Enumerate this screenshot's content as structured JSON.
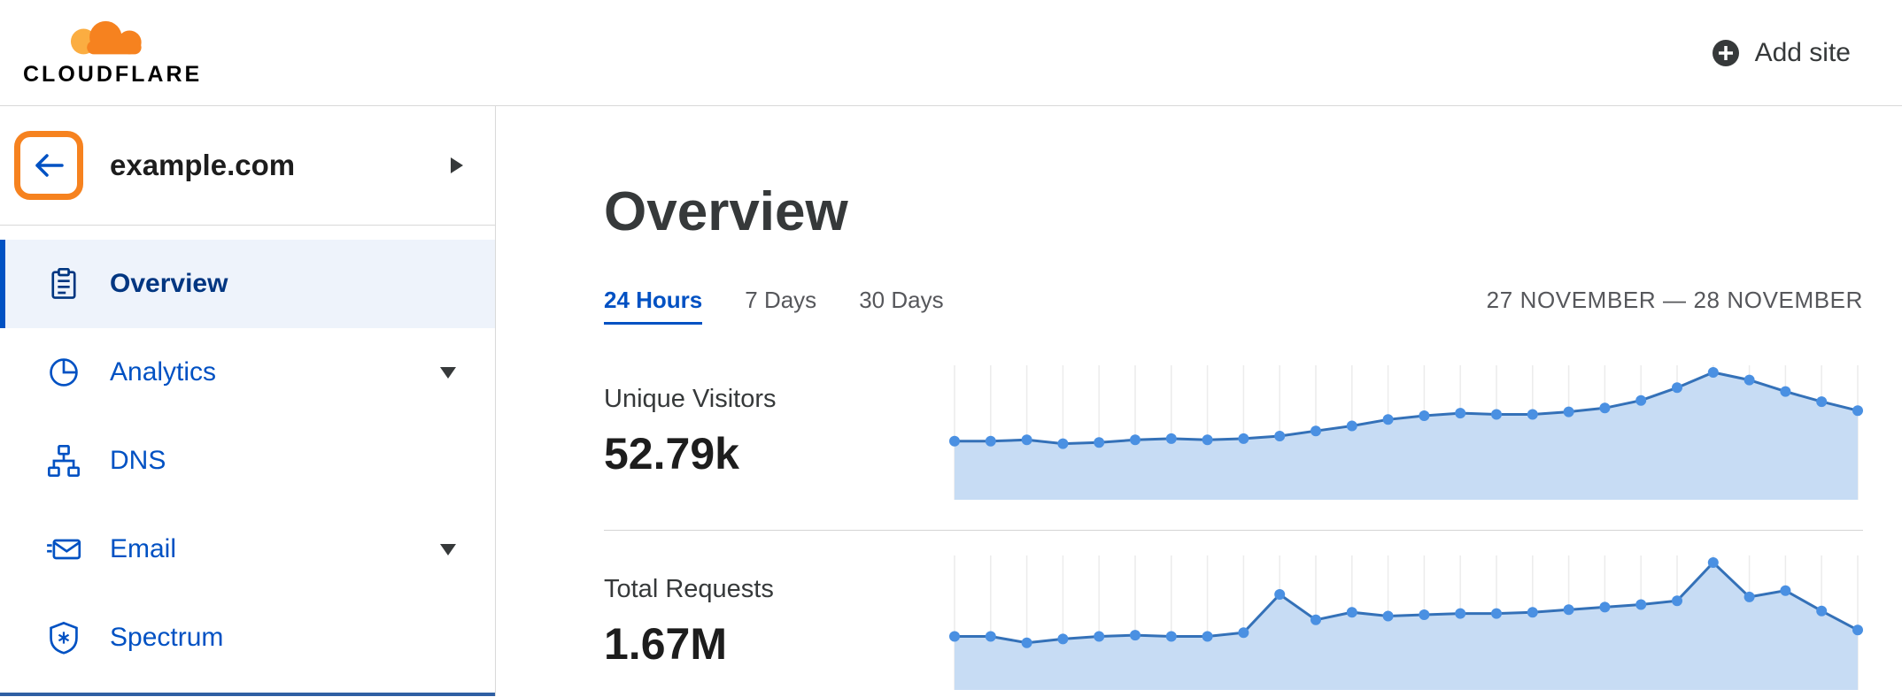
{
  "topbar": {
    "brand": "CLOUDFLARE",
    "add_site": "Add site"
  },
  "sidebar": {
    "site_name": "example.com",
    "items": [
      {
        "label": "Overview",
        "icon": "clipboard-icon",
        "active": true,
        "expandable": false
      },
      {
        "label": "Analytics",
        "icon": "pie-chart-icon",
        "active": false,
        "expandable": true
      },
      {
        "label": "DNS",
        "icon": "sitemap-icon",
        "active": false,
        "expandable": false
      },
      {
        "label": "Email",
        "icon": "envelope-icon",
        "active": false,
        "expandable": true
      },
      {
        "label": "Spectrum",
        "icon": "shield-icon",
        "active": false,
        "expandable": false
      }
    ]
  },
  "main": {
    "title": "Overview",
    "tabs": [
      {
        "label": "24 Hours",
        "active": true
      },
      {
        "label": "7 Days",
        "active": false
      },
      {
        "label": "30 Days",
        "active": false
      }
    ],
    "date_range": "27 NOVEMBER — 28 NOVEMBER",
    "metrics": [
      {
        "label": "Unique Visitors",
        "value": "52.79k"
      },
      {
        "label": "Total Requests",
        "value": "1.67M"
      }
    ]
  },
  "colors": {
    "brand_orange": "#f6821f",
    "brand_orange_light": "#fbad41",
    "link_blue": "#0051c3",
    "active_nav_bg": "#eef3fb",
    "active_nav_text": "#003681",
    "text_dark": "#36393a",
    "text_gray": "#56575b",
    "divider": "#d9d9d9"
  },
  "chart_data": [
    {
      "type": "area",
      "title": "Unique Visitors",
      "total_label": "52.79k",
      "x_unit": "hourly points across 24 Hours (27 November — 28 November)",
      "x": [
        0,
        1,
        2,
        3,
        4,
        5,
        6,
        7,
        8,
        9,
        10,
        11,
        12,
        13,
        14,
        15,
        16,
        17,
        18,
        19,
        20,
        21,
        22,
        23,
        24,
        25
      ],
      "values": [
        46,
        46,
        47,
        44,
        45,
        47,
        48,
        47,
        48,
        50,
        54,
        58,
        63,
        66,
        68,
        67,
        67,
        69,
        72,
        78,
        88,
        100,
        94,
        85,
        77,
        70
      ],
      "y_unit": "relative (% of peak, no axis labels shown)",
      "grid": "vertical",
      "legend": false,
      "line_color": "#3471b8",
      "fill_color": "#c7dcf4",
      "dot_color": "#4a90e2",
      "grid_color": "#ececec"
    },
    {
      "type": "area",
      "title": "Total Requests",
      "total_label": "1.67M",
      "x_unit": "hourly points across 24 Hours (27 November — 28 November)",
      "x": [
        0,
        1,
        2,
        3,
        4,
        5,
        6,
        7,
        8,
        9,
        10,
        11,
        12,
        13,
        14,
        15,
        16,
        17,
        18,
        19,
        20,
        21,
        22,
        23,
        24,
        25
      ],
      "values": [
        42,
        42,
        37,
        40,
        42,
        43,
        42,
        42,
        45,
        75,
        55,
        61,
        58,
        59,
        60,
        60,
        61,
        63,
        65,
        67,
        70,
        100,
        73,
        78,
        62,
        47
      ],
      "y_unit": "relative (% of peak, no axis labels shown)",
      "grid": "vertical",
      "legend": false,
      "line_color": "#3471b8",
      "fill_color": "#c7dcf4",
      "dot_color": "#4a90e2",
      "grid_color": "#ececec"
    }
  ]
}
